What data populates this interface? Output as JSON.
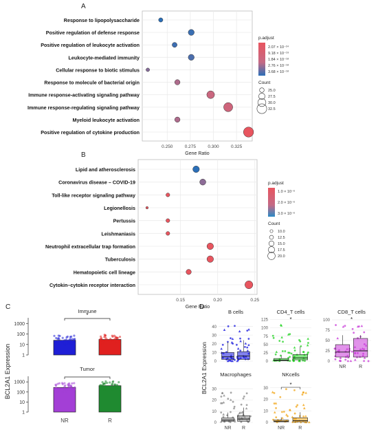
{
  "chart_data": [
    {
      "panel": "A",
      "type": "scatter",
      "xlabel": "Gene Ratio",
      "x_ticks": [
        "0.250",
        "0.275",
        "0.300",
        "0.325"
      ],
      "xlim": [
        0.223,
        0.342
      ],
      "categories": [
        "Response to lipopolysaccharide",
        "Positive regulation of defense response",
        "Positive regulation of leukocyte activation",
        "Leukocyte-mediated immunity",
        "Cellular response to biotic stimulus",
        "Response to molecule of bacterial origin",
        "Immune response-activating signaling pathway",
        "Immune response-regulating signaling pathway",
        "Myeloid leukocyte activation",
        "Positive regulation of cytokine production"
      ],
      "points": [
        {
          "x": 0.243,
          "count": 24.5,
          "padj": 3.6e-16
        },
        {
          "x": 0.276,
          "count": 27.0,
          "padj": 2.4e-16
        },
        {
          "x": 0.258,
          "count": 25.5,
          "padj": 2.2e-16
        },
        {
          "x": 0.276,
          "count": 27.0,
          "padj": 1.5e-16
        },
        {
          "x": 0.229,
          "count": 23.5,
          "padj": 3e-17
        },
        {
          "x": 0.261,
          "count": 26.0,
          "padj": 1e-17
        },
        {
          "x": 0.297,
          "count": 29.5,
          "padj": 2e-18
        },
        {
          "x": 0.316,
          "count": 31.5,
          "padj": 1e-18
        },
        {
          "x": 0.261,
          "count": 26.0,
          "padj": 1e-17
        },
        {
          "x": 0.338,
          "count": 33.0,
          "padj": 1e-20
        }
      ],
      "color_legend": {
        "title": "p.adjust",
        "labels": [
          "2.07 × 10⁻²⁴",
          "9.18 × 10⁻¹⁹",
          "1.84 × 10⁻¹⁸",
          "2.76 × 10⁻¹⁸",
          "3.68 × 10⁻¹⁸"
        ]
      },
      "size_legend": {
        "title": "Count",
        "labels": [
          "25.0",
          "27.5",
          "30.0",
          "32.5"
        ]
      }
    },
    {
      "panel": "B",
      "type": "scatter",
      "xlabel": "Gene Ratio",
      "x_ticks": [
        "0.15",
        "0.20",
        "0.25"
      ],
      "xlim": [
        0.093,
        0.253
      ],
      "categories": [
        "Lipid and atherosclerosis",
        "Coronavirus disease – COVID-19",
        "Toll-like receptor signaling pathway",
        "Legionellosis",
        "Pertussis",
        "Leishmaniasis",
        "Neutrophil extracellular trap formation",
        "Tuberculosis",
        "Hematopoietic cell lineage",
        "Cytokin–cytokin receptor interaction"
      ],
      "points": [
        {
          "x": 0.171,
          "count": 18,
          "padj": 3e-06
        },
        {
          "x": 0.18,
          "count": 17,
          "padj": 1.9e-06
        },
        {
          "x": 0.133,
          "count": 12,
          "padj": 5e-07
        },
        {
          "x": 0.105,
          "count": 9,
          "padj": 5e-07
        },
        {
          "x": 0.133,
          "count": 12,
          "padj": 5e-07
        },
        {
          "x": 0.133,
          "count": 12,
          "padj": 5e-07
        },
        {
          "x": 0.19,
          "count": 18,
          "padj": 5e-07
        },
        {
          "x": 0.19,
          "count": 18,
          "padj": 5e-07
        },
        {
          "x": 0.161,
          "count": 15,
          "padj": 5e-07
        },
        {
          "x": 0.242,
          "count": 21,
          "padj": 5e-07
        }
      ],
      "color_legend": {
        "title": "p.adjust",
        "labels": [
          "1.0 × 10⁻⁶",
          "2.0 × 10⁻⁶",
          "3.0 × 10⁻⁶"
        ]
      },
      "size_legend": {
        "title": "Count",
        "labels": [
          "10.0",
          "12.5",
          "15.0",
          "17.5",
          "20.0"
        ]
      }
    },
    {
      "panel": "C",
      "type": "bar",
      "ylabel": "BCL2A1 Expression",
      "y_scale": "log",
      "y_ticks": [
        "1000",
        "100",
        "10",
        "1"
      ],
      "categories": [
        "NR",
        "R"
      ],
      "subpanels": [
        {
          "title": "Immune",
          "values": [
            25,
            30
          ],
          "colors": [
            "#1f1fd6",
            "#e0201f"
          ],
          "significance": "*"
        },
        {
          "title": "Tumor",
          "values": [
            280,
            420
          ],
          "colors": [
            "#a33fd6",
            "#1f8a30"
          ],
          "significance": ""
        }
      ]
    },
    {
      "panel": "D",
      "type": "box",
      "ylabel": "BCL2A1 Expression",
      "categories": [
        "NR",
        "R"
      ],
      "facets": [
        {
          "title": "B cells",
          "ylim": [
            0,
            50
          ],
          "y_ticks": [
            "0",
            "10",
            "20",
            "30",
            "40"
          ],
          "color": "#1a1adf",
          "significance": "",
          "boxes": [
            {
              "q1": 2,
              "median": 5,
              "q3": 10
            },
            {
              "q1": 2,
              "median": 6,
              "q3": 11
            }
          ]
        },
        {
          "title": "CD4_T cells",
          "ylim": [
            0,
            130
          ],
          "y_ticks": [
            "0",
            "25",
            "50",
            "75",
            "100",
            "125"
          ],
          "color": "#22d322",
          "significance": "*",
          "boxes": [
            {
              "q1": 1,
              "median": 3,
              "q3": 8
            },
            {
              "q1": 4,
              "median": 10,
              "q3": 20
            }
          ]
        },
        {
          "title": "CD8_T cells",
          "ylim": [
            0,
            105
          ],
          "y_ticks": [
            "0",
            "25",
            "50",
            "75",
            "100"
          ],
          "color": "#c839d8",
          "significance": "*",
          "boxes": [
            {
              "q1": 10,
              "median": 22,
              "q3": 40
            },
            {
              "q1": 10,
              "median": 25,
              "q3": 55
            }
          ]
        },
        {
          "title": "Macrophages",
          "ylim": [
            0,
            35
          ],
          "y_ticks": [
            "0",
            "10",
            "20",
            "30"
          ],
          "color": "#8a8a8a",
          "significance": "",
          "boxes": [
            {
              "q1": 1,
              "median": 2,
              "q3": 4
            },
            {
              "q1": 1,
              "median": 3,
              "q3": 6
            }
          ]
        },
        {
          "title": "NKcells",
          "ylim": [
            0,
            34
          ],
          "y_ticks": [
            "0",
            "10",
            "20",
            "30"
          ],
          "color": "#f2a618",
          "significance": "*",
          "boxes": [
            {
              "q1": 0.5,
              "median": 1,
              "q3": 2
            },
            {
              "q1": 0.5,
              "median": 1.5,
              "q3": 4
            }
          ]
        }
      ]
    }
  ]
}
